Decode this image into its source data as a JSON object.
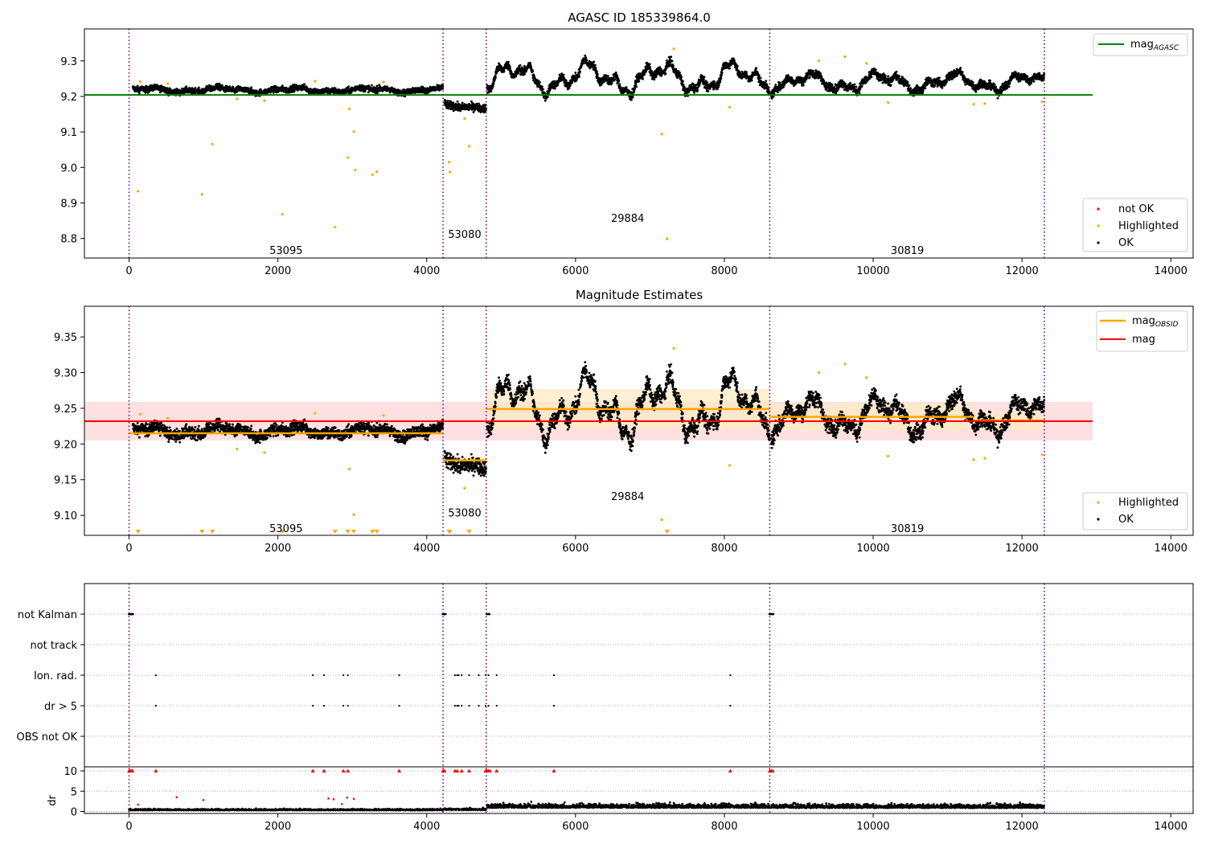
{
  "colors": {
    "ok": "#000000",
    "highlight": "#ffa500",
    "notok": "#ff0000",
    "agasc": "#008000",
    "obs_mean": "#ffa500",
    "mean": "#ff0000",
    "obs_line": "#800080",
    "band_red": "#ffcccc",
    "band_orange": "#ffe9c4"
  },
  "chart_data": [
    {
      "type": "scatter",
      "title": "AGASC ID 185339864.0",
      "xlim": [
        -600,
        14300
      ],
      "ylim": [
        8.745,
        9.39
      ],
      "xticks": [
        0,
        2000,
        4000,
        6000,
        8000,
        10000,
        12000,
        14000
      ],
      "xtick_labels": [
        "0",
        "2000",
        "4000",
        "6000",
        "8000",
        "10000",
        "12000",
        "14000"
      ],
      "yticks": [
        8.8,
        8.9,
        9.0,
        9.1,
        9.2,
        9.3
      ],
      "ytick_labels": [
        "8.8",
        "8.9",
        "9.0",
        "9.1",
        "9.2",
        "9.3"
      ],
      "obs_boundaries": [
        0,
        4220,
        4800,
        8610,
        12300
      ],
      "obs_labels": [
        {
          "text": "53095",
          "x": 2110,
          "y": 8.768
        },
        {
          "text": "53080",
          "x": 4510,
          "y": 8.813
        },
        {
          "text": "29884",
          "x": 6700,
          "y": 8.858
        },
        {
          "text": "30819",
          "x": 10460,
          "y": 8.768
        }
      ],
      "agasc_mag": 9.204,
      "agasc_xrange": [
        -600,
        12950
      ],
      "segments": [
        {
          "x0": 50,
          "x1": 4220,
          "level": 9.218,
          "amp": 0.005,
          "noise": 0.006
        },
        {
          "x0": 4240,
          "x1": 4800,
          "level": 9.172,
          "amp": 0.004,
          "noise": 0.008
        },
        {
          "x0": 4810,
          "x1": 8610,
          "level": 9.252,
          "amp": 0.03,
          "noise": 0.008
        },
        {
          "x0": 8630,
          "x1": 12300,
          "level": 9.24,
          "amp": 0.018,
          "noise": 0.008
        }
      ],
      "highlighted": [
        {
          "x": 120,
          "y": 8.933
        },
        {
          "x": 980,
          "y": 8.924
        },
        {
          "x": 1120,
          "y": 9.066
        },
        {
          "x": 2060,
          "y": 8.868
        },
        {
          "x": 2770,
          "y": 8.832
        },
        {
          "x": 2940,
          "y": 9.028
        },
        {
          "x": 3020,
          "y": 9.101
        },
        {
          "x": 3040,
          "y": 8.993
        },
        {
          "x": 3270,
          "y": 8.98
        },
        {
          "x": 3330,
          "y": 8.988
        },
        {
          "x": 2960,
          "y": 9.165
        },
        {
          "x": 4300,
          "y": 9.015
        },
        {
          "x": 4310,
          "y": 8.987
        },
        {
          "x": 4570,
          "y": 9.06
        },
        {
          "x": 4510,
          "y": 9.138
        },
        {
          "x": 7160,
          "y": 9.094
        },
        {
          "x": 7230,
          "y": 8.799
        },
        {
          "x": 8070,
          "y": 9.17
        },
        {
          "x": 7320,
          "y": 9.334
        },
        {
          "x": 9270,
          "y": 9.3
        },
        {
          "x": 9620,
          "y": 9.312
        },
        {
          "x": 9910,
          "y": 9.293
        },
        {
          "x": 11350,
          "y": 9.178
        },
        {
          "x": 12270,
          "y": 9.185
        },
        {
          "x": 150,
          "y": 9.242
        },
        {
          "x": 520,
          "y": 9.236
        },
        {
          "x": 1450,
          "y": 9.193
        },
        {
          "x": 2500,
          "y": 9.243
        },
        {
          "x": 3420,
          "y": 9.24
        },
        {
          "x": 1820,
          "y": 9.188
        },
        {
          "x": 10200,
          "y": 9.183
        },
        {
          "x": 11500,
          "y": 9.18
        }
      ],
      "legend_top": [
        {
          "label": "mag",
          "sub": "AGASC"
        }
      ],
      "legend_bottom": [
        {
          "label": "not OK"
        },
        {
          "label": "Highlighted"
        },
        {
          "label": "OK"
        }
      ]
    },
    {
      "type": "scatter",
      "title": "Magnitude Estimates",
      "xlim": [
        -600,
        14300
      ],
      "ylim": [
        9.072,
        9.393
      ],
      "xticks": [
        0,
        2000,
        4000,
        6000,
        8000,
        10000,
        12000,
        14000
      ],
      "xtick_labels": [
        "0",
        "2000",
        "4000",
        "6000",
        "8000",
        "10000",
        "12000",
        "14000"
      ],
      "yticks": [
        9.1,
        9.15,
        9.2,
        9.25,
        9.3,
        9.35
      ],
      "ytick_labels": [
        "9.10",
        "9.15",
        "9.20",
        "9.25",
        "9.30",
        "9.35"
      ],
      "obs_boundaries": [
        0,
        4220,
        4800,
        8610,
        12300
      ],
      "obs_labels": [
        {
          "text": "53095",
          "x": 2110,
          "y": 9.082
        },
        {
          "text": "53080",
          "x": 4510,
          "y": 9.104
        },
        {
          "text": "29884",
          "x": 6700,
          "y": 9.127
        },
        {
          "text": "30819",
          "x": 10460,
          "y": 9.082
        }
      ],
      "mean_mag": 9.232,
      "mean_band": [
        9.205,
        9.259
      ],
      "mean_xrange": [
        -600,
        12950
      ],
      "obs_means": [
        {
          "x0": 0,
          "x1": 4220,
          "mag": 9.215,
          "band": [
            9.212,
            9.218
          ]
        },
        {
          "x0": 4220,
          "x1": 4800,
          "mag": 9.177,
          "band": [
            9.172,
            9.182
          ]
        },
        {
          "x0": 4800,
          "x1": 8610,
          "mag": 9.249,
          "band": [
            9.222,
            9.277
          ]
        },
        {
          "x0": 8610,
          "x1": 11340,
          "mag": 9.238,
          "band": [
            9.219,
            9.257
          ]
        },
        {
          "x0": 11340,
          "x1": 12300,
          "mag": 9.233,
          "band": [
            9.219,
            9.246
          ]
        }
      ],
      "triangles_x": [
        120,
        980,
        1120,
        2060,
        2770,
        2940,
        3020,
        3270,
        3330,
        4300,
        4310,
        4570,
        7230
      ],
      "legend_top": [
        {
          "label": "mag",
          "sub": "OBSID"
        },
        {
          "label": "mag"
        }
      ],
      "legend_bottom": [
        {
          "label": "Highlighted"
        },
        {
          "label": "OK"
        }
      ]
    },
    {
      "type": "scatter",
      "xlim": [
        -600,
        14300
      ],
      "xticks": [
        0,
        2000,
        4000,
        6000,
        8000,
        10000,
        12000,
        14000
      ],
      "xtick_labels": [
        "0",
        "2000",
        "4000",
        "6000",
        "8000",
        "10000",
        "12000",
        "14000"
      ],
      "obs_boundaries": [
        0,
        4220,
        4800,
        8610,
        12300
      ],
      "flag_rows": [
        "not Kalman",
        "not track",
        "Ion. rad.",
        "dr > 5",
        "OBS not OK"
      ],
      "not_kalman_x": [
        0,
        10,
        20,
        30,
        40,
        50,
        4220,
        4235,
        4250,
        4810,
        4825,
        4840,
        8610,
        8625,
        8640,
        8655
      ],
      "ion_rad_x": [
        360,
        2470,
        2620,
        2880,
        2940,
        3630,
        4380,
        4410,
        4430,
        4470,
        4570,
        4700,
        4790,
        4830,
        4940,
        5710,
        8080
      ],
      "dr_gt5_x": [
        360,
        2470,
        2620,
        2880,
        2940,
        3630,
        4380,
        4410,
        4430,
        4470,
        4570,
        4700,
        4790,
        4830,
        4940,
        5710,
        8080
      ],
      "dr_ylabel": "dr",
      "dr_ylim": [
        -0.5,
        11
      ],
      "dr_yticks": [
        0,
        5,
        10
      ],
      "dr_ytick_labels": [
        "0",
        "5",
        "10"
      ],
      "dr_clipped_x": [
        0,
        15,
        30,
        45,
        360,
        2470,
        2620,
        2880,
        2940,
        3630,
        4220,
        4240,
        4380,
        4410,
        4470,
        4570,
        4790,
        4810,
        4830,
        4850,
        4940,
        5710,
        8080,
        8610,
        8630,
        8650
      ],
      "dr_outliers": [
        {
          "x": 640,
          "y": 3.5
        },
        {
          "x": 1000,
          "y": 2.8
        },
        {
          "x": 2680,
          "y": 3.2
        },
        {
          "x": 2750,
          "y": 3.0
        },
        {
          "x": 2930,
          "y": 3.4
        },
        {
          "x": 3020,
          "y": 3.1
        },
        {
          "x": 2860,
          "y": 1.8
        },
        {
          "x": 120,
          "y": 1.7
        }
      ]
    }
  ]
}
